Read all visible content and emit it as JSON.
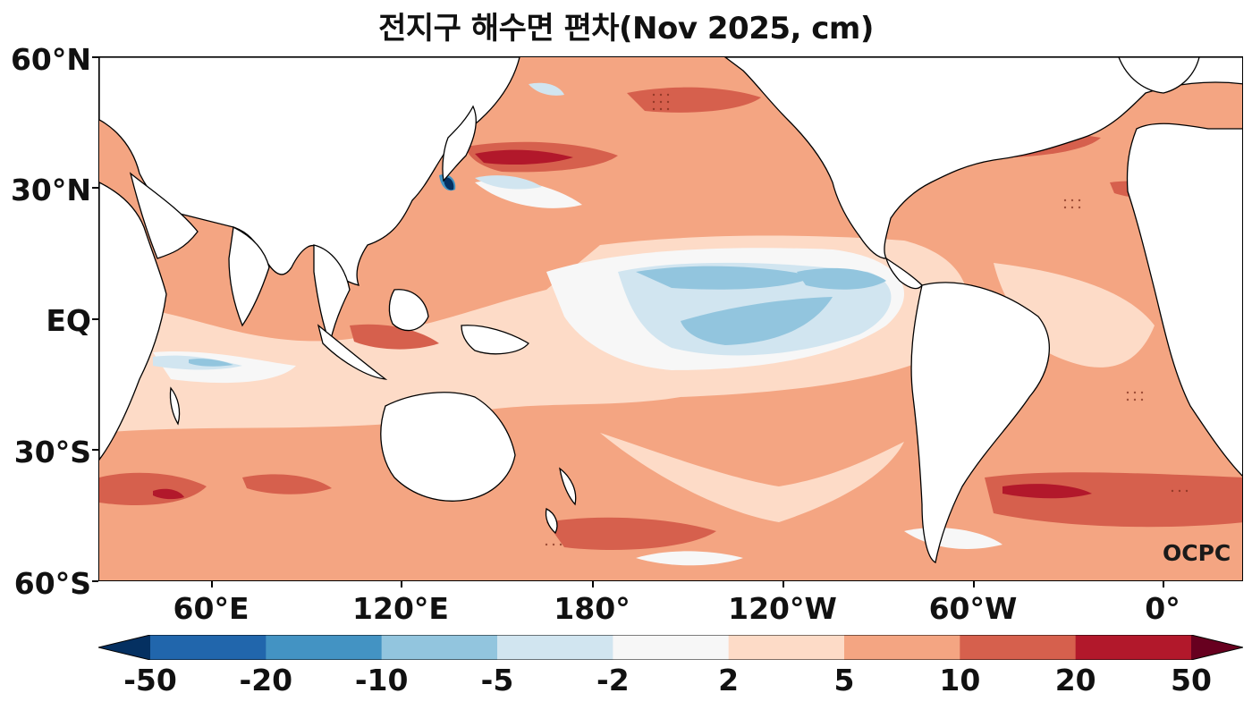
{
  "title": "전지구 해수면 편차(Nov 2025, cm)",
  "credit": "OCPC",
  "yticks": [
    "60°N",
    "30°N",
    "EQ",
    "30°S",
    "60°S"
  ],
  "xticks": [
    "60°E",
    "120°E",
    "180°",
    "120°W",
    "60°W",
    "0°"
  ],
  "colorbar": {
    "labels": [
      "-50",
      "-20",
      "-10",
      "-5",
      "-2",
      "2",
      "5",
      "10",
      "20",
      "50"
    ],
    "colors": [
      "#053061",
      "#2166ac",
      "#4393c3",
      "#92c5de",
      "#d1e5f0",
      "#f7f7f7",
      "#fddbc7",
      "#f4a582",
      "#d6604d",
      "#b2182b",
      "#67001f"
    ]
  },
  "map": {
    "ocean_base_color": "#f4a582",
    "land_color": "#ffffff",
    "coastline_color": "#000000"
  }
}
